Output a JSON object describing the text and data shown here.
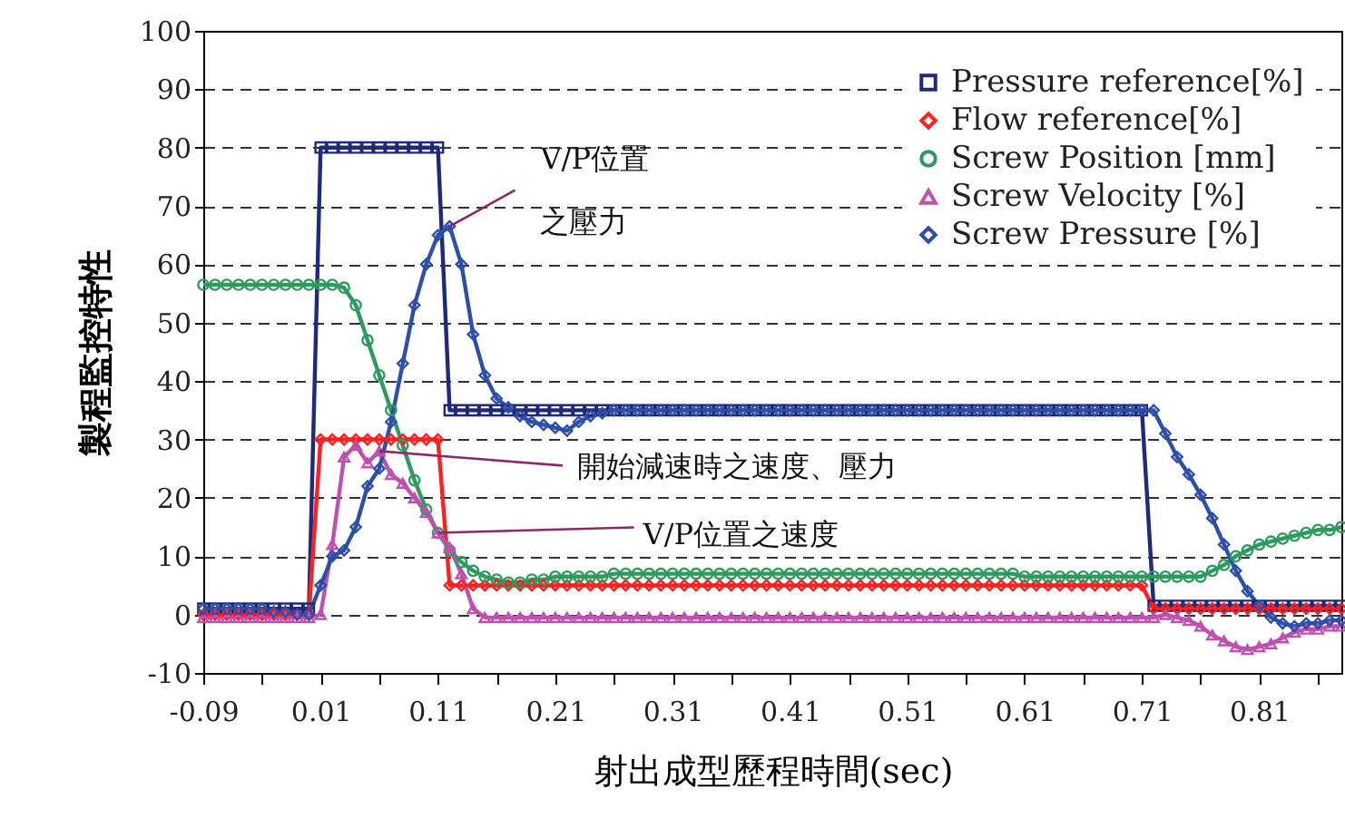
{
  "chart_data": {
    "type": "line",
    "xlabel": "射出成型歷程時間(sec)",
    "ylabel": "製程監控特性",
    "x": [
      -0.09,
      -0.08,
      -0.07,
      -0.06,
      -0.05,
      -0.04,
      -0.03,
      -0.02,
      -0.01,
      0,
      0.01,
      0.02,
      0.03,
      0.04,
      0.05,
      0.06,
      0.07,
      0.08,
      0.09,
      0.1,
      0.11,
      0.12,
      0.13,
      0.14,
      0.15,
      0.16,
      0.17,
      0.18,
      0.19,
      0.2,
      0.21,
      0.22,
      0.23,
      0.24,
      0.25,
      0.26,
      0.27,
      0.28,
      0.29,
      0.3,
      0.31,
      0.32,
      0.33,
      0.34,
      0.35,
      0.36,
      0.37,
      0.38,
      0.39,
      0.4,
      0.41,
      0.42,
      0.43,
      0.44,
      0.45,
      0.46,
      0.47,
      0.48,
      0.49,
      0.5,
      0.51,
      0.52,
      0.53,
      0.54,
      0.55,
      0.56,
      0.57,
      0.58,
      0.59,
      0.6,
      0.61,
      0.62,
      0.63,
      0.64,
      0.65,
      0.66,
      0.67,
      0.68,
      0.69,
      0.7,
      0.71,
      0.72,
      0.73,
      0.74,
      0.75,
      0.76,
      0.77,
      0.78,
      0.79,
      0.8,
      0.81,
      0.82,
      0.83,
      0.84,
      0.85,
      0.86,
      0.87,
      0.88
    ],
    "series": [
      {
        "name": "Pressure reference[%]",
        "color": "#1f2a7a",
        "marker": "square",
        "values": [
          1,
          1,
          1,
          1,
          1,
          1,
          1,
          1,
          1,
          1,
          80,
          80,
          80,
          80,
          80,
          80,
          80,
          80,
          80,
          80,
          80,
          35,
          35,
          35,
          35,
          35,
          35,
          35,
          35,
          35,
          35,
          35,
          35,
          35,
          35,
          35,
          35,
          35,
          35,
          35,
          35,
          35,
          35,
          35,
          35,
          35,
          35,
          35,
          35,
          35,
          35,
          35,
          35,
          35,
          35,
          35,
          35,
          35,
          35,
          35,
          35,
          35,
          35,
          35,
          35,
          35,
          35,
          35,
          35,
          35,
          35,
          35,
          35,
          35,
          35,
          35,
          35,
          35,
          35,
          35,
          35,
          1.5,
          1.5,
          1.5,
          1.5,
          1.5,
          1.5,
          1.5,
          1.5,
          1.5,
          1.5,
          1.5,
          1.5,
          1.5,
          1.5,
          1.5,
          1.5,
          1.5
        ]
      },
      {
        "name": "Flow reference[%]",
        "color": "#ff2020",
        "marker": "diamond",
        "values": [
          0,
          0,
          0,
          0,
          0,
          0,
          0,
          0,
          0,
          0,
          30,
          30,
          30,
          30,
          30,
          30,
          30,
          30,
          30,
          30,
          30,
          5,
          5,
          5,
          5,
          5,
          5,
          5,
          5,
          5,
          5,
          5,
          5,
          5,
          5,
          5,
          5,
          5,
          5,
          5,
          5,
          5,
          5,
          5,
          5,
          5,
          5,
          5,
          5,
          5,
          5,
          5,
          5,
          5,
          5,
          5,
          5,
          5,
          5,
          5,
          5,
          5,
          5,
          5,
          5,
          5,
          5,
          5,
          5,
          5,
          5,
          5,
          5,
          5,
          5,
          5,
          5,
          5,
          5,
          5,
          5,
          1,
          1,
          1,
          1,
          1,
          1,
          1,
          1,
          1,
          1,
          1,
          1,
          1,
          1,
          1,
          1,
          1
        ]
      },
      {
        "name": "Screw Position [mm]",
        "color": "#2e9a5e",
        "marker": "circle",
        "values": [
          56.5,
          56.5,
          56.5,
          56.5,
          56.5,
          56.5,
          56.5,
          56.5,
          56.5,
          56.5,
          56.5,
          56.5,
          56,
          53,
          47,
          41,
          35,
          29,
          23,
          18,
          14,
          11,
          9,
          7.5,
          6.5,
          6,
          5.5,
          5.5,
          6,
          6,
          6.5,
          6.5,
          6.5,
          6.5,
          6.5,
          7,
          7,
          7,
          7,
          7,
          7,
          7,
          7,
          7,
          7,
          7,
          7,
          7,
          7,
          7,
          7,
          7,
          7,
          7,
          7,
          7,
          7,
          7,
          7,
          7,
          7,
          7,
          7,
          7,
          7,
          7,
          7,
          7,
          7,
          7,
          6.5,
          6.5,
          6.5,
          6.5,
          6.5,
          6.5,
          6.5,
          6.5,
          6.5,
          6.5,
          6.5,
          6.5,
          6.5,
          6.5,
          6.5,
          6.5,
          7.5,
          8.5,
          10,
          11,
          12,
          12.5,
          13,
          13.5,
          14,
          14.5,
          14.5,
          15
        ]
      },
      {
        "name": "Screw Velocity [%]",
        "color": "#c050b0",
        "marker": "triangle",
        "values": [
          -0.5,
          -0.5,
          -0.5,
          -0.5,
          -0.5,
          -0.5,
          -0.5,
          -0.5,
          -0.5,
          -0.5,
          0,
          12,
          27,
          29,
          26,
          28,
          24,
          22.5,
          20,
          17.5,
          14,
          11.5,
          7,
          1,
          -0.5,
          -0.5,
          -0.5,
          -0.5,
          -0.5,
          -0.5,
          -0.5,
          -0.5,
          -0.5,
          -0.5,
          -0.5,
          -0.5,
          -0.5,
          -0.5,
          -0.5,
          -0.5,
          -0.5,
          -0.5,
          -0.5,
          -0.5,
          -0.5,
          -0.5,
          -0.5,
          -0.5,
          -0.5,
          -0.5,
          -0.5,
          -0.5,
          -0.5,
          -0.5,
          -0.5,
          -0.5,
          -0.5,
          -0.5,
          -0.5,
          -0.5,
          -0.5,
          -0.5,
          -0.5,
          -0.5,
          -0.5,
          -0.5,
          -0.5,
          -0.5,
          -0.5,
          -0.5,
          -0.5,
          -0.5,
          -0.5,
          -0.5,
          -0.5,
          -0.5,
          -0.5,
          -0.5,
          -0.5,
          -0.5,
          -0.5,
          -0.5,
          0,
          -0.5,
          -1,
          -2,
          -3.5,
          -4.5,
          -5.5,
          -6,
          -5.5,
          -5,
          -4,
          -3,
          -2.5,
          -2.5,
          -2,
          -2
        ]
      },
      {
        "name": "Screw Pressure [%]",
        "color": "#2d4fa8",
        "marker": "diamond",
        "values": [
          1,
          1,
          1,
          1,
          1,
          1,
          0.5,
          0.5,
          0,
          0,
          5,
          10,
          11,
          15,
          22,
          25,
          33,
          43,
          53,
          60,
          65,
          66.5,
          60,
          48,
          41,
          37,
          35.5,
          34,
          33,
          32.5,
          32,
          31.5,
          33,
          34,
          34.5,
          35,
          35,
          35,
          35,
          35,
          35,
          35,
          35,
          35,
          35,
          35,
          35,
          35,
          35,
          35,
          35,
          35,
          35,
          35,
          35,
          35,
          35,
          35,
          35,
          35,
          35,
          35,
          35,
          35,
          35,
          35,
          35,
          35,
          35,
          35,
          35,
          35,
          35,
          35,
          35,
          35,
          35,
          35,
          35,
          35,
          35,
          35,
          31,
          27,
          24,
          20.5,
          16.5,
          12,
          7.5,
          4,
          1.5,
          -0.5,
          -1.5,
          -2,
          -1.5,
          -1.5,
          -1,
          -1
        ]
      }
    ],
    "xlim": [
      -0.09,
      0.88
    ],
    "xticks": [
      -0.09,
      {
        "value": -0.04,
        "label": null
      },
      0.01,
      {
        "value": 0.06,
        "label": null
      },
      0.11,
      {
        "value": 0.16,
        "label": null
      },
      0.21,
      {
        "value": 0.26,
        "label": null
      },
      0.31,
      {
        "value": 0.36,
        "label": null
      },
      0.41,
      {
        "value": 0.46,
        "label": null
      },
      0.51,
      {
        "value": 0.56,
        "label": null
      },
      0.61,
      {
        "value": 0.66,
        "label": null
      },
      0.71,
      {
        "value": 0.76,
        "label": null
      },
      0.81,
      {
        "value": 0.86,
        "label": null
      }
    ],
    "ylim": [
      -10,
      100
    ],
    "yticks": [
      -10,
      0,
      10,
      20,
      30,
      40,
      50,
      60,
      70,
      80,
      90,
      100
    ],
    "grid": "y",
    "legend": "top right",
    "line_style": "solid",
    "annotations": [
      {
        "text": "V/P位置",
        "x": 0.12,
        "y": 66.5
      },
      {
        "text": "之壓力",
        "x": 0.12,
        "y": 66.5
      },
      {
        "text": "開始減速時之速度、壓力",
        "x": 0.06,
        "y": 28
      },
      {
        "text": "V/P位置之速度",
        "x": 0.11,
        "y": 14
      }
    ]
  }
}
